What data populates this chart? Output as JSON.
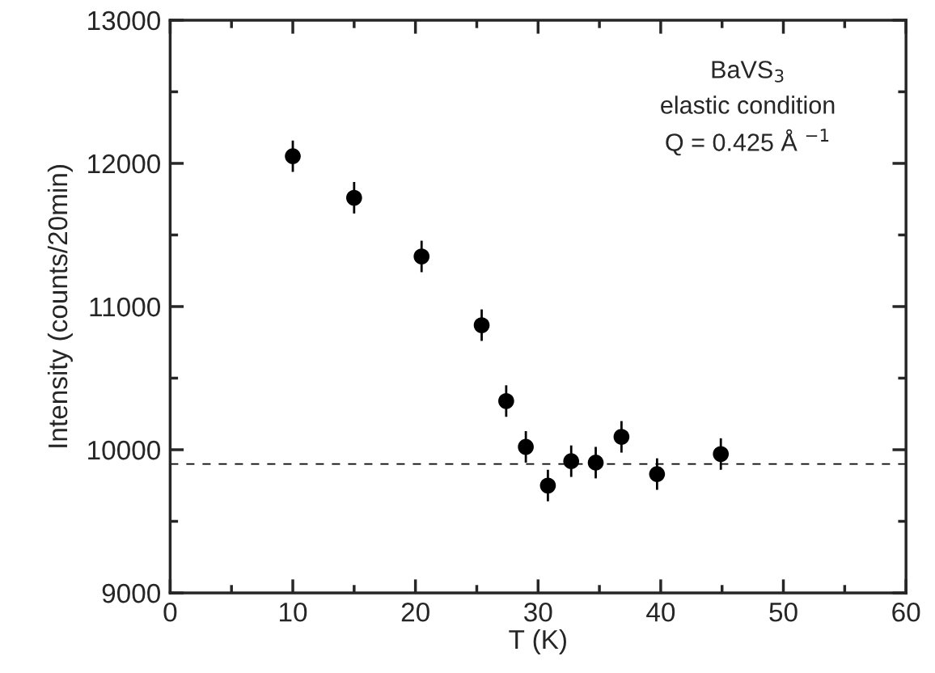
{
  "chart_data": {
    "type": "scatter",
    "xlabel": "T (K)",
    "ylabel": "Intensity (counts/20min)",
    "annotations": [
      "BaVS$_{3}$",
      "elastic condition",
      "Q = 0.425 Å $^{−1}$"
    ],
    "x": [
      10.0,
      15.0,
      20.5,
      25.4,
      27.4,
      29.0,
      30.8,
      32.7,
      34.7,
      36.8,
      39.7,
      44.9
    ],
    "series": [
      {
        "color": "#000000",
        "values": [
          12050,
          11760,
          11350,
          10870,
          10340,
          10020,
          9750,
          9920,
          9910,
          10090,
          9830,
          9970
        ],
        "errors": [
          110,
          110,
          110,
          110,
          110,
          110,
          110,
          110,
          110,
          110,
          110,
          110
        ]
      }
    ],
    "xlim": [
      0,
      60
    ],
    "ylim": [
      9000,
      13000
    ],
    "xticks": [
      0,
      {
        "value": 5,
        "label": null
      },
      10,
      {
        "value": 15,
        "label": null
      },
      20,
      {
        "value": 25,
        "label": null
      },
      30,
      {
        "value": 35,
        "label": null
      },
      40,
      {
        "value": 45,
        "label": null
      },
      50,
      {
        "value": 55,
        "label": null
      },
      60
    ],
    "yticks": [
      9000,
      {
        "value": 9500,
        "label": null
      },
      10000,
      {
        "value": 10500,
        "label": null
      },
      11000,
      {
        "value": 11500,
        "label": null
      },
      12000,
      {
        "value": 12500,
        "label": null
      },
      13000
    ],
    "ref_lines": [
      {
        "axis": "y",
        "value": 9900,
        "color": "#000000",
        "line_style": "dashed"
      }
    ],
    "marker": "circle",
    "grid": false,
    "legend": false
  }
}
